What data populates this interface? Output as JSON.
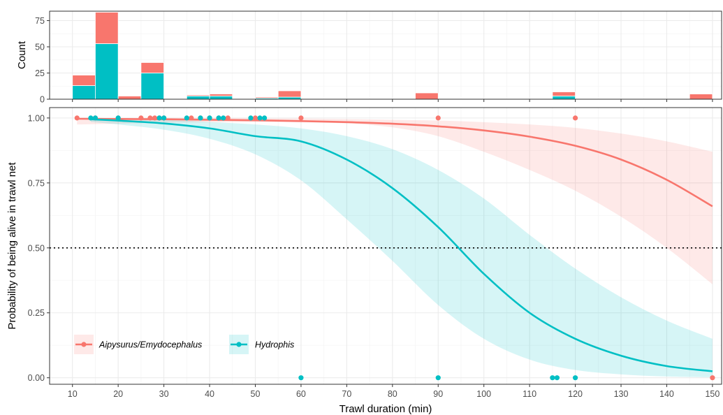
{
  "colors": {
    "aipysurus": "#F8766D",
    "hydrophis": "#00BFC4",
    "aipysurus_ribbon": "#F8766D",
    "hydrophis_ribbon": "#00BFC4",
    "grid_major": "#EBEBEB",
    "grid_minor": "#F5F5F5",
    "axis_text": "#4D4D4D",
    "title_text": "#000000",
    "threshold_line": "#000000"
  },
  "chart_data": [
    {
      "id": "histogram",
      "type": "bar",
      "stacked": true,
      "ylabel": "Count",
      "xlim": [
        5,
        152
      ],
      "ylim": [
        0,
        84
      ],
      "y_ticks": [
        0,
        25,
        50,
        75
      ],
      "x_ticks": [
        10,
        20,
        30,
        40,
        50,
        60,
        70,
        80,
        90,
        100,
        110,
        120,
        130,
        140,
        150
      ],
      "grid": true,
      "bin_width": 5,
      "bins": [
        {
          "x0": 10,
          "x1": 15,
          "hydrophis": 13,
          "aipysurus": 10
        },
        {
          "x0": 15,
          "x1": 20,
          "hydrophis": 53,
          "aipysurus": 30
        },
        {
          "x0": 20,
          "x1": 25,
          "hydrophis": 0,
          "aipysurus": 3
        },
        {
          "x0": 25,
          "x1": 30,
          "hydrophis": 25,
          "aipysurus": 10
        },
        {
          "x0": 35,
          "x1": 40,
          "hydrophis": 3,
          "aipysurus": 1
        },
        {
          "x0": 40,
          "x1": 45,
          "hydrophis": 3,
          "aipysurus": 2
        },
        {
          "x0": 50,
          "x1": 55,
          "hydrophis": 1,
          "aipysurus": 1
        },
        {
          "x0": 55,
          "x1": 60,
          "hydrophis": 2,
          "aipysurus": 6
        },
        {
          "x0": 85,
          "x1": 90,
          "hydrophis": 0,
          "aipysurus": 6
        },
        {
          "x0": 115,
          "x1": 120,
          "hydrophis": 3,
          "aipysurus": 4
        },
        {
          "x0": 145,
          "x1": 150,
          "hydrophis": 0,
          "aipysurus": 5
        }
      ]
    },
    {
      "id": "logistic",
      "type": "line",
      "xlabel": "Trawl duration (min)",
      "ylabel": "Probability of being alive in trawl net",
      "xlim": [
        5,
        152
      ],
      "ylim": [
        -0.025,
        1.04
      ],
      "x_ticks": [
        10,
        20,
        30,
        40,
        50,
        60,
        70,
        80,
        90,
        100,
        110,
        120,
        130,
        140,
        150
      ],
      "y_ticks": [
        0,
        0.25,
        0.5,
        0.75,
        1.0
      ],
      "y_tick_labels": [
        "0.00",
        "0.25",
        "0.50",
        "0.75",
        "1.00"
      ],
      "grid": true,
      "threshold": 0.5,
      "legend_position": "bottom-left",
      "series": [
        {
          "name": "Aipysurus/Emydocephalus",
          "key": "aipysurus",
          "curve": {
            "x": [
              11,
              20,
              30,
              40,
              50,
              60,
              70,
              80,
              90,
              100,
              110,
              120,
              130,
              140,
              150
            ],
            "y": [
              0.997,
              0.996,
              0.995,
              0.993,
              0.991,
              0.988,
              0.984,
              0.978,
              0.968,
              0.952,
              0.928,
              0.893,
              0.84,
              0.762,
              0.66
            ]
          },
          "ci_lower": [
            0.975,
            0.978,
            0.982,
            0.984,
            0.985,
            0.984,
            0.979,
            0.964,
            0.93,
            0.87,
            0.8,
            0.72,
            0.62,
            0.5,
            0.36
          ],
          "ci_upper": [
            1.0,
            1.0,
            1.0,
            1.0,
            0.999,
            0.998,
            0.996,
            0.993,
            0.99,
            0.984,
            0.975,
            0.962,
            0.94,
            0.91,
            0.87
          ],
          "points": {
            "x": [
              11,
              15,
              20,
              25,
              27,
              28,
              29,
              30,
              36,
              38,
              40,
              42,
              44,
              50,
              60,
              90,
              120,
              150
            ],
            "y": [
              1,
              1,
              1,
              1,
              1,
              1,
              1,
              1,
              1,
              1,
              1,
              1,
              1,
              1,
              1,
              1,
              1,
              0
            ]
          }
        },
        {
          "name": "Hydrophis",
          "key": "hydrophis",
          "curve": {
            "x": [
              14,
              20,
              30,
              40,
              50,
              60,
              70,
              80,
              90,
              100,
              110,
              120,
              130,
              140,
              150
            ],
            "y": [
              0.995,
              0.99,
              0.979,
              0.96,
              0.93,
              0.91,
              0.84,
              0.73,
              0.58,
              0.4,
              0.25,
              0.15,
              0.085,
              0.045,
              0.025
            ]
          },
          "ci_lower": [
            0.985,
            0.975,
            0.955,
            0.92,
            0.86,
            0.76,
            0.61,
            0.45,
            0.28,
            0.15,
            0.07,
            0.03,
            0.013,
            0.005,
            0.002
          ],
          "ci_upper": [
            1.0,
            0.998,
            0.993,
            0.985,
            0.975,
            0.96,
            0.93,
            0.88,
            0.8,
            0.69,
            0.55,
            0.42,
            0.31,
            0.22,
            0.15
          ],
          "points": {
            "x": [
              14,
              15,
              20,
              29,
              30,
              35,
              38,
              40,
              42,
              43,
              49,
              51,
              52,
              60,
              90,
              115,
              116,
              120
            ],
            "y": [
              1,
              1,
              1,
              1,
              1,
              1,
              1,
              1,
              1,
              1,
              1,
              1,
              1,
              0,
              0,
              0,
              0,
              0
            ]
          }
        }
      ]
    }
  ]
}
